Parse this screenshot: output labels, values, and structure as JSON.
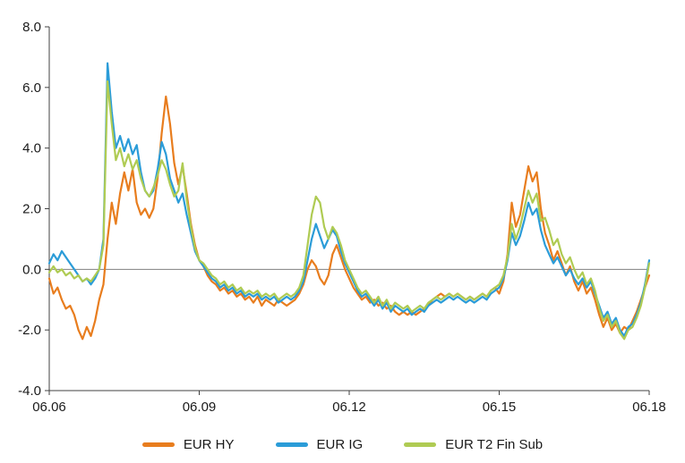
{
  "chart_data": {
    "type": "line",
    "title": "",
    "xlabel": "",
    "ylabel": "",
    "ylim": [
      -4.0,
      8.0
    ],
    "y_ticks": [
      8.0,
      6.0,
      4.0,
      2.0,
      0.0,
      -2.0,
      -4.0
    ],
    "y_tick_labels": [
      "8.0",
      "6.0",
      "4.0",
      "2.0",
      "0.0",
      "-2.0",
      "-4.0"
    ],
    "x_tick_labels": [
      "06.06",
      "06.09",
      "06.12",
      "06.15",
      "06.18"
    ],
    "x_tick_positions": [
      0,
      36,
      72,
      108,
      144
    ],
    "x_unit": "monthly points from 06.2006 to 06.2018",
    "zero_line": true,
    "grid": false,
    "legend_position": "bottom-center",
    "axis_color": "#404040",
    "zero_line_color": "#808080",
    "series": [
      {
        "name": "EUR HY",
        "color": "#E87D1E",
        "values": [
          -0.3,
          -0.8,
          -0.6,
          -1.0,
          -1.3,
          -1.2,
          -1.5,
          -2.0,
          -2.3,
          -1.9,
          -2.2,
          -1.7,
          -1.0,
          -0.5,
          1.0,
          2.2,
          1.5,
          2.5,
          3.2,
          2.6,
          3.3,
          2.2,
          1.8,
          2.0,
          1.7,
          2.0,
          3.0,
          4.5,
          5.7,
          4.8,
          3.5,
          2.8,
          3.4,
          2.5,
          1.5,
          0.8,
          0.3,
          0.1,
          -0.2,
          -0.4,
          -0.5,
          -0.7,
          -0.6,
          -0.8,
          -0.7,
          -0.9,
          -0.8,
          -1.0,
          -0.9,
          -1.1,
          -0.9,
          -1.2,
          -1.0,
          -1.1,
          -1.2,
          -1.0,
          -1.1,
          -1.2,
          -1.1,
          -1.0,
          -0.8,
          -0.5,
          0.0,
          0.3,
          0.1,
          -0.3,
          -0.5,
          -0.2,
          0.5,
          0.8,
          0.4,
          0.0,
          -0.3,
          -0.6,
          -0.8,
          -1.0,
          -0.9,
          -1.1,
          -1.0,
          -1.2,
          -1.1,
          -1.3,
          -1.2,
          -1.4,
          -1.5,
          -1.4,
          -1.5,
          -1.4,
          -1.5,
          -1.4,
          -1.3,
          -1.2,
          -1.0,
          -0.9,
          -0.8,
          -0.9,
          -0.8,
          -0.9,
          -0.8,
          -0.9,
          -1.0,
          -0.9,
          -1.0,
          -0.9,
          -0.8,
          -0.9,
          -0.7,
          -0.6,
          -0.8,
          -0.4,
          0.5,
          2.2,
          1.4,
          1.8,
          2.6,
          3.4,
          2.9,
          3.2,
          2.0,
          1.2,
          0.8,
          0.3,
          0.6,
          0.2,
          -0.2,
          0.1,
          -0.4,
          -0.7,
          -0.4,
          -0.8,
          -0.6,
          -1.0,
          -1.5,
          -1.9,
          -1.6,
          -2.0,
          -1.8,
          -2.1,
          -1.9,
          -2.0,
          -1.7,
          -1.4,
          -1.0,
          -0.6,
          -0.2
        ]
      },
      {
        "name": "EUR IG",
        "color": "#2B9CD8",
        "values": [
          0.2,
          0.5,
          0.3,
          0.6,
          0.4,
          0.2,
          0.0,
          -0.2,
          -0.4,
          -0.3,
          -0.5,
          -0.3,
          0.0,
          1.0,
          6.8,
          5.2,
          4.0,
          4.4,
          3.9,
          4.3,
          3.8,
          4.1,
          3.2,
          2.6,
          2.4,
          2.6,
          3.3,
          4.2,
          3.8,
          3.0,
          2.6,
          2.2,
          2.5,
          1.8,
          1.2,
          0.6,
          0.3,
          0.1,
          -0.1,
          -0.3,
          -0.4,
          -0.6,
          -0.5,
          -0.7,
          -0.6,
          -0.8,
          -0.7,
          -0.9,
          -0.8,
          -0.9,
          -0.8,
          -1.0,
          -0.9,
          -1.0,
          -0.9,
          -1.1,
          -1.0,
          -0.9,
          -1.0,
          -0.9,
          -0.7,
          -0.4,
          0.3,
          1.0,
          1.5,
          1.1,
          0.7,
          1.0,
          1.3,
          1.1,
          0.6,
          0.2,
          -0.1,
          -0.4,
          -0.7,
          -0.9,
          -0.8,
          -1.0,
          -1.2,
          -1.0,
          -1.3,
          -1.1,
          -1.4,
          -1.2,
          -1.3,
          -1.4,
          -1.3,
          -1.5,
          -1.4,
          -1.3,
          -1.4,
          -1.2,
          -1.1,
          -1.0,
          -1.1,
          -1.0,
          -0.9,
          -1.0,
          -0.9,
          -1.0,
          -1.1,
          -1.0,
          -1.1,
          -1.0,
          -0.9,
          -1.0,
          -0.8,
          -0.7,
          -0.6,
          -0.3,
          0.3,
          1.2,
          0.8,
          1.1,
          1.6,
          2.2,
          1.8,
          2.0,
          1.3,
          0.8,
          0.5,
          0.2,
          0.4,
          0.1,
          -0.2,
          0.0,
          -0.3,
          -0.5,
          -0.3,
          -0.6,
          -0.4,
          -0.8,
          -1.2,
          -1.6,
          -1.4,
          -1.8,
          -1.6,
          -2.0,
          -2.2,
          -1.9,
          -1.8,
          -1.5,
          -1.1,
          -0.5,
          0.3
        ]
      },
      {
        "name": "EUR T2 Fin Sub",
        "color": "#AFCB53",
        "values": [
          -0.1,
          0.1,
          -0.1,
          0.0,
          -0.2,
          -0.1,
          -0.3,
          -0.2,
          -0.4,
          -0.3,
          -0.4,
          -0.2,
          0.0,
          0.8,
          6.2,
          4.8,
          3.6,
          4.0,
          3.4,
          3.8,
          3.3,
          3.6,
          3.0,
          2.6,
          2.4,
          2.7,
          3.1,
          3.6,
          3.3,
          2.8,
          2.4,
          2.6,
          3.5,
          2.3,
          1.4,
          0.7,
          0.3,
          0.2,
          0.0,
          -0.2,
          -0.3,
          -0.5,
          -0.4,
          -0.6,
          -0.5,
          -0.7,
          -0.6,
          -0.8,
          -0.7,
          -0.8,
          -0.7,
          -0.9,
          -0.8,
          -0.9,
          -0.8,
          -1.0,
          -0.9,
          -0.8,
          -0.9,
          -0.8,
          -0.6,
          -0.2,
          0.8,
          1.8,
          2.4,
          2.2,
          1.4,
          1.0,
          1.4,
          1.2,
          0.8,
          0.3,
          0.0,
          -0.3,
          -0.6,
          -0.8,
          -0.7,
          -0.9,
          -1.1,
          -0.9,
          -1.2,
          -1.0,
          -1.3,
          -1.1,
          -1.2,
          -1.3,
          -1.2,
          -1.4,
          -1.3,
          -1.2,
          -1.3,
          -1.1,
          -1.0,
          -0.9,
          -1.0,
          -0.9,
          -0.8,
          -0.9,
          -0.8,
          -0.9,
          -1.0,
          -0.9,
          -1.0,
          -0.9,
          -0.8,
          -0.9,
          -0.7,
          -0.6,
          -0.5,
          -0.2,
          0.4,
          1.5,
          1.0,
          1.4,
          2.0,
          2.6,
          2.2,
          2.5,
          1.6,
          1.7,
          1.3,
          0.8,
          1.0,
          0.5,
          0.2,
          0.4,
          0.0,
          -0.3,
          -0.1,
          -0.5,
          -0.3,
          -0.7,
          -1.3,
          -1.7,
          -1.5,
          -1.9,
          -1.7,
          -2.1,
          -2.3,
          -2.0,
          -1.9,
          -1.6,
          -1.2,
          -0.6,
          0.2
        ]
      }
    ],
    "legend": [
      "EUR HY",
      "EUR IG",
      "EUR T2 Fin Sub"
    ]
  }
}
